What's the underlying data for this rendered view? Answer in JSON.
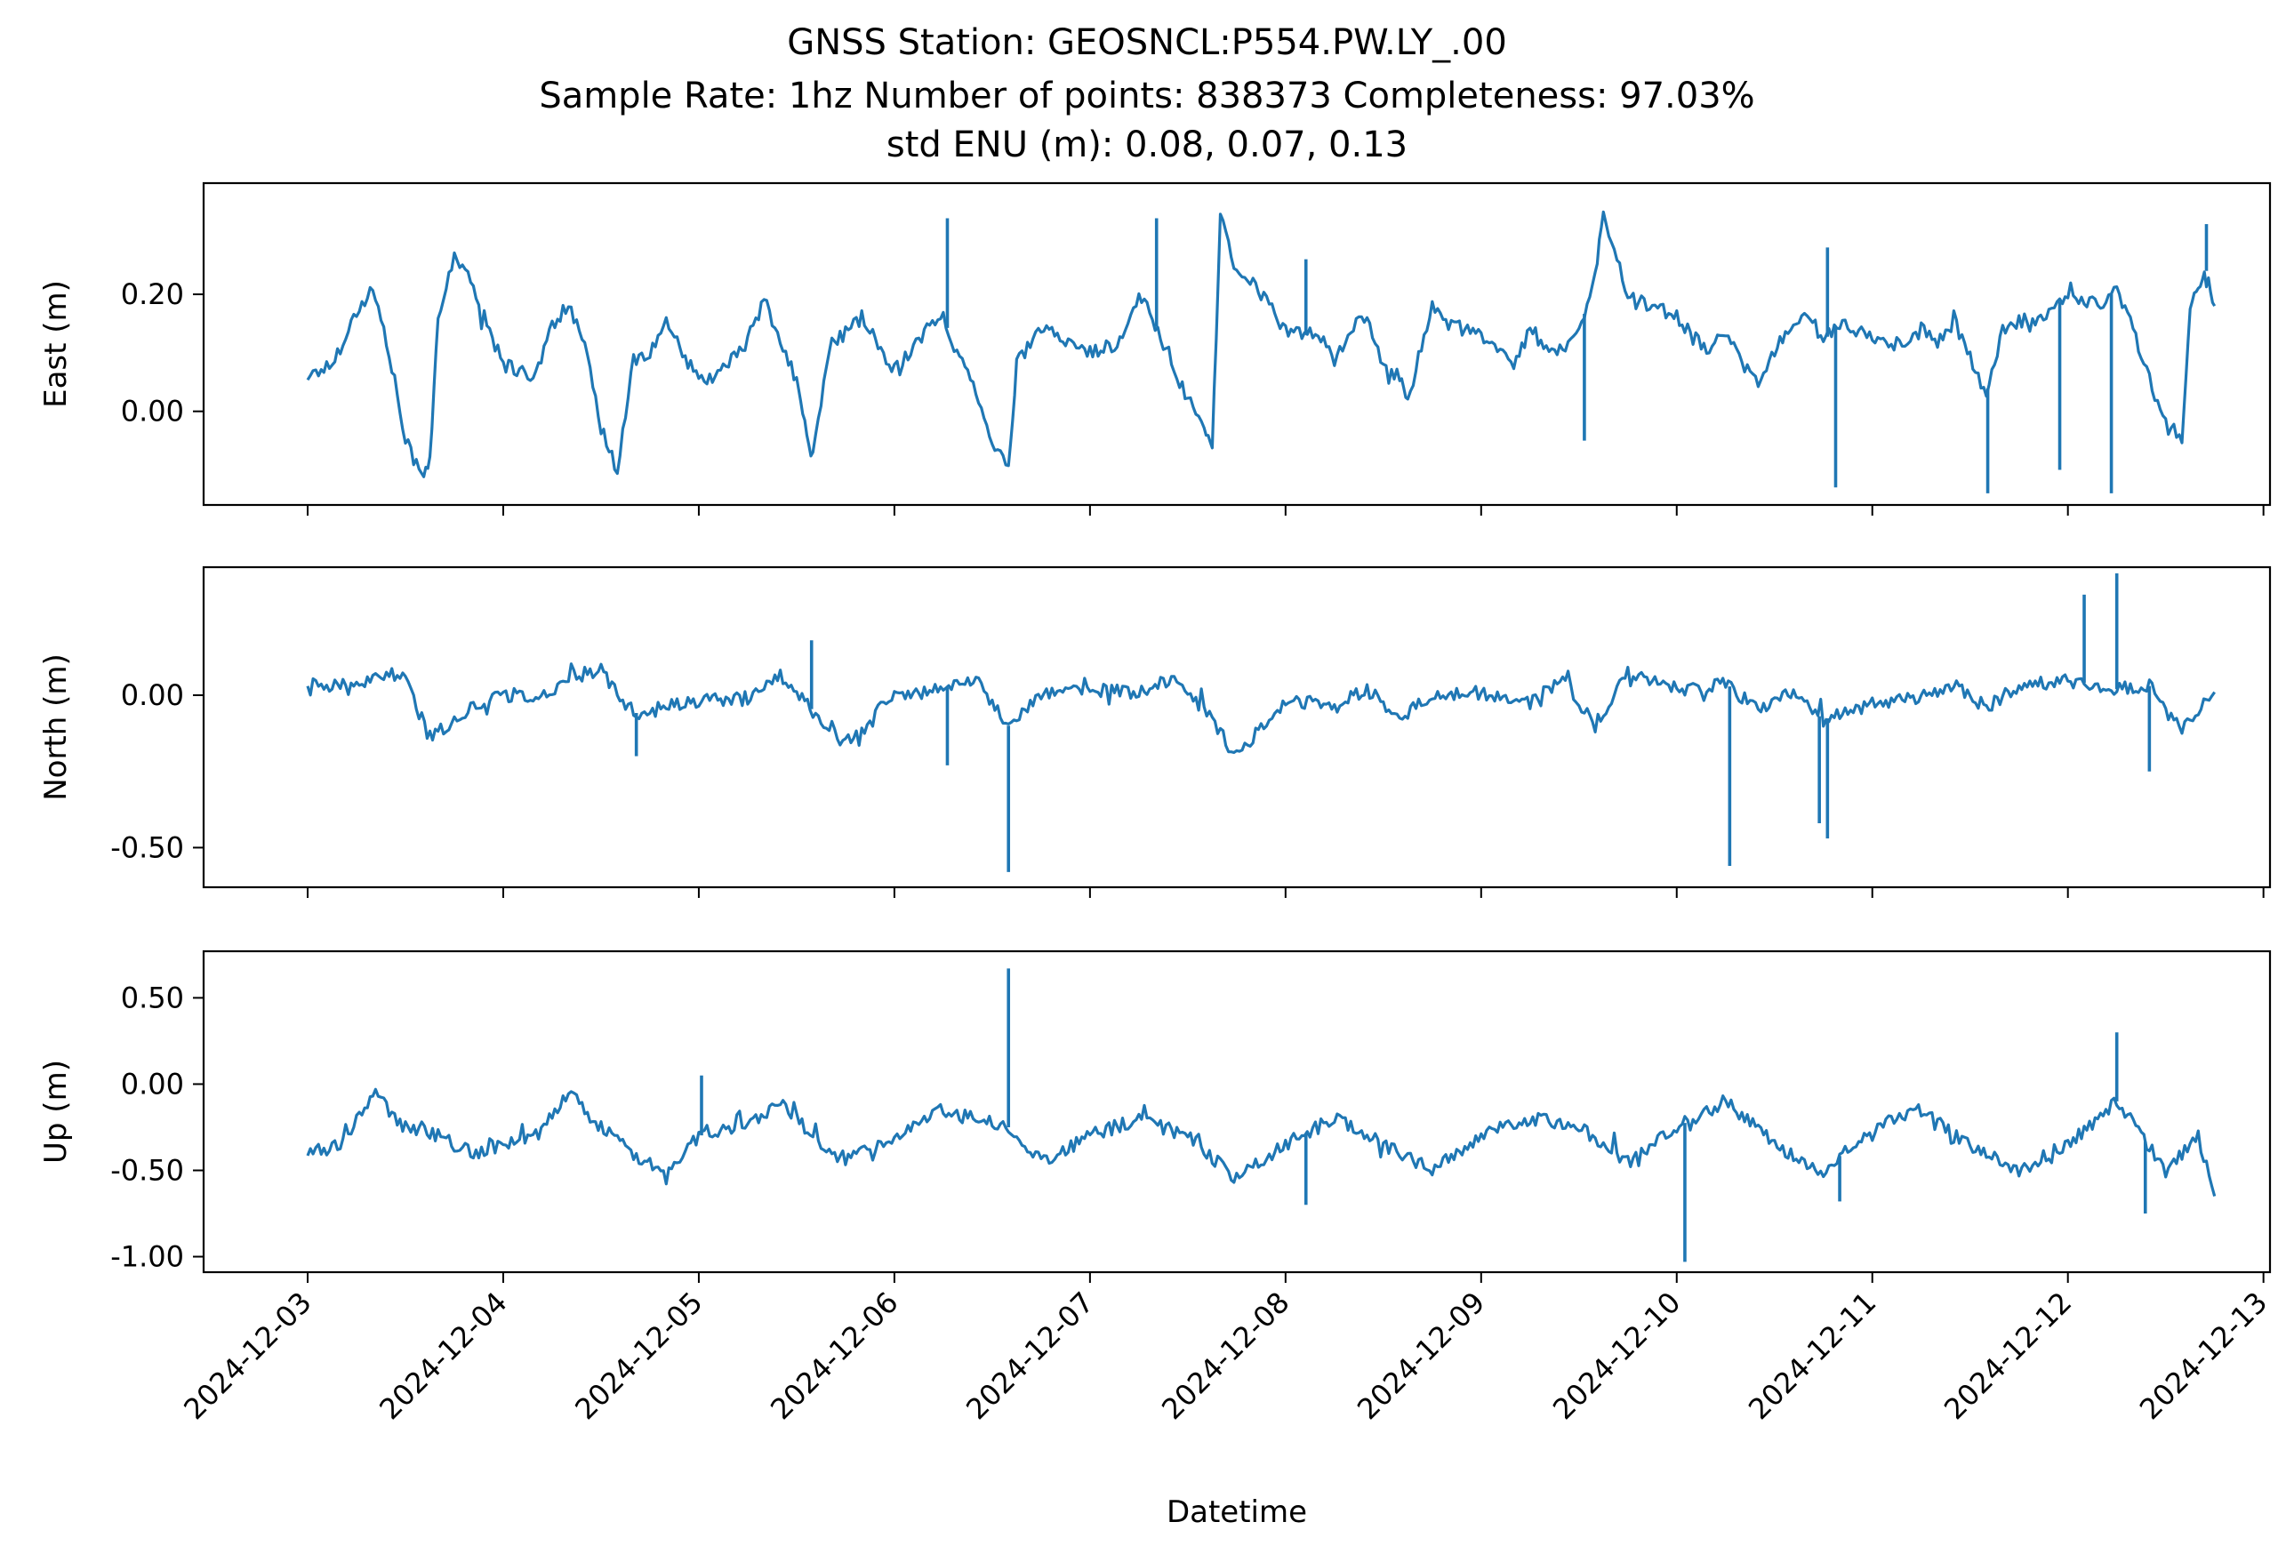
{
  "chart_data": {
    "type": "line",
    "title": "GNSS Station: GEOSNCL:P554.PW.LY_.00",
    "subtitle": "Sample Rate: 1hz   Number of points: 838373    Completeness:  97.03%",
    "subtitle2": "std ENU (m):  0.08, 0.07, 0.13",
    "xlabel": "Datetime",
    "x_ticks": [
      "2024-12-03",
      "2024-12-04",
      "2024-12-05",
      "2024-12-06",
      "2024-12-07",
      "2024-12-08",
      "2024-12-09",
      "2024-12-10",
      "2024-12-11",
      "2024-12-12",
      "2024-12-13"
    ],
    "x_range": [
      "2024-12-02T11:14",
      "2024-12-13T00:48"
    ],
    "color": "#1f77b4",
    "grid": false,
    "panels": [
      {
        "ylabel": "East (m)",
        "ylim": [
          -0.16,
          0.39
        ],
        "y_ticks": [
          {
            "v": 0.0,
            "label": "0.00"
          },
          {
            "v": 0.2,
            "label": "0.20"
          }
        ],
        "series": [
          {
            "x": [
              "2024-12-03T00:00",
              "2024-12-03T03:00",
              "2024-12-03T06:00",
              "2024-12-03T08:00",
              "2024-12-03T10:00",
              "2024-12-03T12:00",
              "2024-12-03T14:00",
              "2024-12-03T15:00",
              "2024-12-03T16:00",
              "2024-12-03T18:00",
              "2024-12-03T20:00",
              "2024-12-04T00:00",
              "2024-12-04T04:00",
              "2024-12-04T06:00",
              "2024-12-04T08:00",
              "2024-12-04T10:00",
              "2024-12-04T12:00",
              "2024-12-04T14:00",
              "2024-12-04T16:00",
              "2024-12-04T18:00",
              "2024-12-04T20:00",
              "2024-12-05T00:00",
              "2024-12-05T03:00",
              "2024-12-05T06:00",
              "2024-12-05T08:00",
              "2024-12-05T12:00",
              "2024-12-05T13:00",
              "2024-12-05T14:00",
              "2024-12-05T16:00",
              "2024-12-05T20:00",
              "2024-12-06T00:00",
              "2024-12-06T04:00",
              "2024-12-06T06:00",
              "2024-12-06T08:00",
              "2024-12-06T10:00",
              "2024-12-06T12:00",
              "2024-12-06T14:00",
              "2024-12-06T15:00",
              "2024-12-06T18:00",
              "2024-12-06T20:00",
              "2024-12-07T00:00",
              "2024-12-07T04:00",
              "2024-12-07T06:00",
              "2024-12-07T08:00",
              "2024-12-07T10:00",
              "2024-12-07T12:00",
              "2024-12-07T14:00",
              "2024-12-07T15:00",
              "2024-12-07T16:00",
              "2024-12-07T18:00",
              "2024-12-07T20:00",
              "2024-12-08T00:00",
              "2024-12-08T04:00",
              "2024-12-08T06:00",
              "2024-12-08T08:00",
              "2024-12-08T10:00",
              "2024-12-08T12:00",
              "2024-12-08T14:00",
              "2024-12-08T15:00",
              "2024-12-08T18:00",
              "2024-12-08T20:00",
              "2024-12-09T00:00",
              "2024-12-09T04:00",
              "2024-12-09T06:00",
              "2024-12-09T08:00",
              "2024-12-09T10:00",
              "2024-12-09T12:00",
              "2024-12-09T14:00",
              "2024-12-09T15:00",
              "2024-12-09T18:00",
              "2024-12-10T00:00",
              "2024-12-10T04:00",
              "2024-12-10T06:00",
              "2024-12-10T08:00",
              "2024-12-10T10:00",
              "2024-12-10T12:00",
              "2024-12-10T14:00",
              "2024-12-10T16:00",
              "2024-12-10T18:00",
              "2024-12-10T20:00",
              "2024-12-11T00:00",
              "2024-12-11T04:00",
              "2024-12-11T06:00",
              "2024-12-11T08:00",
              "2024-12-11T10:00",
              "2024-12-11T12:00",
              "2024-12-11T14:00",
              "2024-12-11T16:00",
              "2024-12-11T18:00",
              "2024-12-11T20:00",
              "2024-12-12T00:00",
              "2024-12-12T04:00",
              "2024-12-12T06:00",
              "2024-12-12T08:00",
              "2024-12-12T10:00",
              "2024-12-12T12:00",
              "2024-12-12T14:00",
              "2024-12-12T15:00",
              "2024-12-12T16:00",
              "2024-12-12T17:00",
              "2024-12-12T18:00"
            ],
            "y": [
              0.06,
              0.08,
              0.17,
              0.21,
              0.1,
              -0.05,
              -0.11,
              -0.08,
              0.15,
              0.27,
              0.22,
              0.08,
              0.06,
              0.15,
              0.18,
              0.11,
              -0.03,
              -0.1,
              0.09,
              0.1,
              0.15,
              0.05,
              0.07,
              0.12,
              0.19,
              0.05,
              -0.02,
              -0.08,
              0.11,
              0.16,
              0.07,
              0.14,
              0.16,
              0.09,
              0.04,
              -0.05,
              -0.1,
              0.08,
              0.14,
              0.13,
              0.1,
              0.12,
              0.2,
              0.15,
              0.08,
              0.02,
              -0.03,
              -0.06,
              0.33,
              0.24,
              0.22,
              0.14,
              0.13,
              0.09,
              0.14,
              0.16,
              0.07,
              0.06,
              0.02,
              0.18,
              0.15,
              0.13,
              0.08,
              0.14,
              0.11,
              0.1,
              0.13,
              0.24,
              0.33,
              0.2,
              0.16,
              0.1,
              0.14,
              0.08,
              0.05,
              0.1,
              0.15,
              0.17,
              0.12,
              0.15,
              0.13,
              0.11,
              0.14,
              0.12,
              0.16,
              0.09,
              0.03,
              0.14,
              0.14,
              0.15,
              0.2,
              0.18,
              0.21,
              0.14,
              0.06,
              -0.03,
              -0.05,
              0.17,
              0.22,
              0.24,
              0.18
            ]
          }
        ],
        "spikes": [
          {
            "x": "2024-12-06T06:30",
            "y": 0.33
          },
          {
            "x": "2024-12-07T08:10",
            "y": 0.33
          },
          {
            "x": "2024-12-08T02:30",
            "y": 0.26
          },
          {
            "x": "2024-12-09T12:40",
            "y": -0.05
          },
          {
            "x": "2024-12-10T18:30",
            "y": 0.28
          },
          {
            "x": "2024-12-10T19:30",
            "y": -0.13
          },
          {
            "x": "2024-12-11T14:10",
            "y": -0.14
          },
          {
            "x": "2024-12-11T23:00",
            "y": -0.1
          },
          {
            "x": "2024-12-12T05:20",
            "y": -0.14
          },
          {
            "x": "2024-12-12T17:00",
            "y": 0.32
          }
        ]
      },
      {
        "ylabel": "North (m)",
        "ylim": [
          -0.63,
          0.42
        ],
        "y_ticks": [
          {
            "v": 0.0,
            "label": "0.00"
          },
          {
            "v": -0.5,
            "label": "-0.50"
          }
        ],
        "series": [
          {
            "x": [
              "2024-12-03T00:00",
              "2024-12-03T06:00",
              "2024-12-03T10:00",
              "2024-12-03T12:00",
              "2024-12-03T15:00",
              "2024-12-03T18:00",
              "2024-12-04T00:00",
              "2024-12-04T04:00",
              "2024-12-04T08:00",
              "2024-12-04T12:00",
              "2024-12-04T16:00",
              "2024-12-05T00:00",
              "2024-12-05T06:00",
              "2024-12-05T10:00",
              "2024-12-05T14:00",
              "2024-12-05T18:00",
              "2024-12-06T00:00",
              "2024-12-06T06:00",
              "2024-12-06T10:00",
              "2024-12-06T14:00",
              "2024-12-06T18:00",
              "2024-12-07T00:00",
              "2024-12-07T06:00",
              "2024-12-07T10:00",
              "2024-12-07T14:00",
              "2024-12-07T18:00",
              "2024-12-08T00:00",
              "2024-12-08T06:00",
              "2024-12-08T10:00",
              "2024-12-08T14:00",
              "2024-12-08T18:00",
              "2024-12-09T00:00",
              "2024-12-09T06:00",
              "2024-12-09T10:00",
              "2024-12-09T14:00",
              "2024-12-09T18:00",
              "2024-12-10T00:00",
              "2024-12-10T06:00",
              "2024-12-10T10:00",
              "2024-12-10T14:00",
              "2024-12-10T18:00",
              "2024-12-11T00:00",
              "2024-12-11T06:00",
              "2024-12-11T10:00",
              "2024-12-11T14:00",
              "2024-12-11T18:00",
              "2024-12-12T00:00",
              "2024-12-12T06:00",
              "2024-12-12T10:00",
              "2024-12-12T14:00",
              "2024-12-12T18:00"
            ],
            "y": [
              0.04,
              0.02,
              0.08,
              0.05,
              -0.14,
              -0.08,
              0.02,
              -0.02,
              0.06,
              0.08,
              -0.06,
              -0.02,
              -0.01,
              0.06,
              -0.05,
              -0.15,
              0.0,
              0.02,
              0.05,
              -0.1,
              0.01,
              0.02,
              0.01,
              0.05,
              -0.05,
              -0.2,
              -0.02,
              -0.03,
              0.02,
              -0.08,
              0.0,
              0.01,
              -0.03,
              0.06,
              -0.1,
              0.08,
              0.02,
              0.04,
              -0.05,
              0.01,
              -0.08,
              -0.03,
              -0.01,
              0.04,
              -0.04,
              0.03,
              0.05,
              0.02,
              0.03,
              -0.12,
              0.01
            ]
          }
        ],
        "spikes": [
          {
            "x": "2024-12-04T16:20",
            "y": -0.2
          },
          {
            "x": "2024-12-05T13:50",
            "y": 0.18
          },
          {
            "x": "2024-12-06T06:30",
            "y": -0.23
          },
          {
            "x": "2024-12-06T14:00",
            "y": -0.58
          },
          {
            "x": "2024-12-10T06:30",
            "y": -0.56
          },
          {
            "x": "2024-12-10T17:30",
            "y": -0.42
          },
          {
            "x": "2024-12-10T18:30",
            "y": -0.47
          },
          {
            "x": "2024-12-12T02:00",
            "y": 0.33
          },
          {
            "x": "2024-12-12T06:00",
            "y": 0.4
          },
          {
            "x": "2024-12-12T10:00",
            "y": -0.25
          }
        ]
      },
      {
        "ylabel": "Up (m)",
        "ylim": [
          -1.09,
          0.77
        ],
        "y_ticks": [
          {
            "v": 0.5,
            "label": "0.50"
          },
          {
            "v": 0.0,
            "label": "0.00"
          },
          {
            "v": -0.5,
            "label": "-0.50"
          },
          {
            "v": -1.0,
            "label": "-1.00"
          }
        ],
        "series": [
          {
            "x": [
              "2024-12-03T00:00",
              "2024-12-03T04:00",
              "2024-12-03T08:00",
              "2024-12-03T12:00",
              "2024-12-03T16:00",
              "2024-12-03T20:00",
              "2024-12-04T00:00",
              "2024-12-04T04:00",
              "2024-12-04T08:00",
              "2024-12-04T12:00",
              "2024-12-04T16:00",
              "2024-12-04T20:00",
              "2024-12-05T00:00",
              "2024-12-05T06:00",
              "2024-12-05T10:00",
              "2024-12-05T14:00",
              "2024-12-05T18:00",
              "2024-12-06T00:00",
              "2024-12-06T06:00",
              "2024-12-06T10:00",
              "2024-12-06T14:00",
              "2024-12-06T18:00",
              "2024-12-07T00:00",
              "2024-12-07T06:00",
              "2024-12-07T12:00",
              "2024-12-07T18:00",
              "2024-12-08T00:00",
              "2024-12-08T06:00",
              "2024-12-08T12:00",
              "2024-12-08T18:00",
              "2024-12-09T00:00",
              "2024-12-09T06:00",
              "2024-12-09T12:00",
              "2024-12-09T18:00",
              "2024-12-10T00:00",
              "2024-12-10T06:00",
              "2024-12-10T12:00",
              "2024-12-10T18:00",
              "2024-12-11T00:00",
              "2024-12-11T06:00",
              "2024-12-11T12:00",
              "2024-12-11T18:00",
              "2024-12-12T00:00",
              "2024-12-12T06:00",
              "2024-12-12T12:00",
              "2024-12-12T16:00",
              "2024-12-12T18:00"
            ],
            "y": [
              -0.4,
              -0.35,
              -0.05,
              -0.25,
              -0.3,
              -0.4,
              -0.35,
              -0.3,
              -0.05,
              -0.25,
              -0.4,
              -0.5,
              -0.3,
              -0.25,
              -0.1,
              -0.3,
              -0.45,
              -0.3,
              -0.15,
              -0.2,
              -0.25,
              -0.45,
              -0.3,
              -0.2,
              -0.3,
              -0.55,
              -0.35,
              -0.2,
              -0.35,
              -0.5,
              -0.3,
              -0.2,
              -0.25,
              -0.45,
              -0.25,
              -0.1,
              -0.35,
              -0.5,
              -0.25,
              -0.15,
              -0.35,
              -0.5,
              -0.35,
              -0.1,
              -0.5,
              -0.3,
              -0.65
            ]
          }
        ],
        "spikes": [
          {
            "x": "2024-12-05T00:20",
            "y": 0.05
          },
          {
            "x": "2024-12-06T14:00",
            "y": 0.67
          },
          {
            "x": "2024-12-08T02:30",
            "y": -0.7
          },
          {
            "x": "2024-12-10T01:00",
            "y": -1.03
          },
          {
            "x": "2024-12-10T20:00",
            "y": -0.68
          },
          {
            "x": "2024-12-12T06:00",
            "y": 0.3
          },
          {
            "x": "2024-12-12T09:30",
            "y": -0.75
          }
        ]
      }
    ]
  }
}
